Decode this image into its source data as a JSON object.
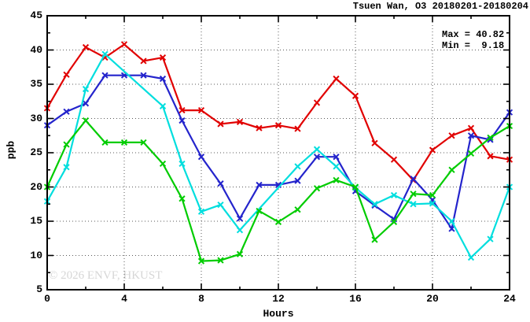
{
  "header": {
    "title": "Tsuen Wan, O3 20180201-20180204"
  },
  "stats": {
    "max_line": "Max = 40.82",
    "min_line": "Min =  9.18"
  },
  "watermark": "© 2026 ENVF, HKUST",
  "axis": {
    "xlabel": "Hours",
    "ylabel": "ppb"
  },
  "chart_data": {
    "type": "line",
    "title": "Tsuen Wan, O3 20180201-20180204",
    "xlabel": "Hours",
    "ylabel": "ppb",
    "xlim": [
      0,
      24
    ],
    "ylim": [
      5,
      45
    ],
    "x_major_ticks": [
      0,
      4,
      8,
      12,
      16,
      20,
      24
    ],
    "x_minor_ticks": [
      2,
      6,
      10,
      14,
      18,
      22
    ],
    "x_gridlines": [
      4,
      8,
      12,
      16,
      20
    ],
    "y_major_ticks": [
      5,
      10,
      15,
      20,
      25,
      30,
      35,
      40,
      45
    ],
    "y_minor_ticks": [
      7.5,
      12.5,
      17.5,
      22.5,
      27.5,
      32.5,
      37.5,
      42.5
    ],
    "y_gridlines": [
      10,
      15,
      20,
      25,
      30,
      35,
      40
    ],
    "grid": true,
    "legend": "none",
    "max": 40.82,
    "min": 9.18,
    "x": [
      0,
      1,
      2,
      3,
      4,
      5,
      6,
      7,
      8,
      9,
      10,
      11,
      12,
      13,
      14,
      15,
      16,
      17,
      18,
      19,
      20,
      21,
      22,
      23,
      24
    ],
    "series": [
      {
        "name": "series-red",
        "color": "#e10000",
        "values": [
          31.5,
          36.4,
          40.4,
          38.9,
          40.82,
          38.4,
          38.9,
          31.2,
          31.2,
          29.2,
          29.5,
          28.6,
          29.0,
          28.5,
          32.3,
          35.8,
          33.3,
          26.4,
          24.0,
          21.0,
          25.4,
          27.5,
          28.6,
          24.5,
          24.0
        ]
      },
      {
        "name": "series-blue",
        "color": "#2424cc",
        "values": [
          29.0,
          31.0,
          32.2,
          36.3,
          36.3,
          36.3,
          35.8,
          29.7,
          24.4,
          20.5,
          15.4,
          20.3,
          20.3,
          20.9,
          24.4,
          24.4,
          19.4,
          17.3,
          15.3,
          21.2,
          18.1,
          13.9,
          27.5,
          26.9,
          30.9
        ]
      },
      {
        "name": "series-cyan",
        "color": "#00dede",
        "values": [
          17.9,
          22.9,
          34.3,
          39.4,
          null,
          null,
          31.8,
          23.4,
          16.4,
          17.4,
          13.7,
          null,
          null,
          23.0,
          25.5,
          23.0,
          19.9,
          17.5,
          18.8,
          17.5,
          17.6,
          15.0,
          9.7,
          12.4,
          20.0
        ]
      },
      {
        "name": "series-green",
        "color": "#00cc00",
        "values": [
          20.0,
          26.2,
          29.7,
          26.5,
          26.5,
          26.5,
          23.4,
          18.3,
          9.18,
          9.3,
          10.2,
          16.5,
          14.9,
          16.7,
          19.8,
          21.0,
          20.0,
          12.3,
          14.9,
          19.0,
          18.8,
          22.5,
          24.9,
          27.2,
          28.9
        ]
      }
    ]
  }
}
